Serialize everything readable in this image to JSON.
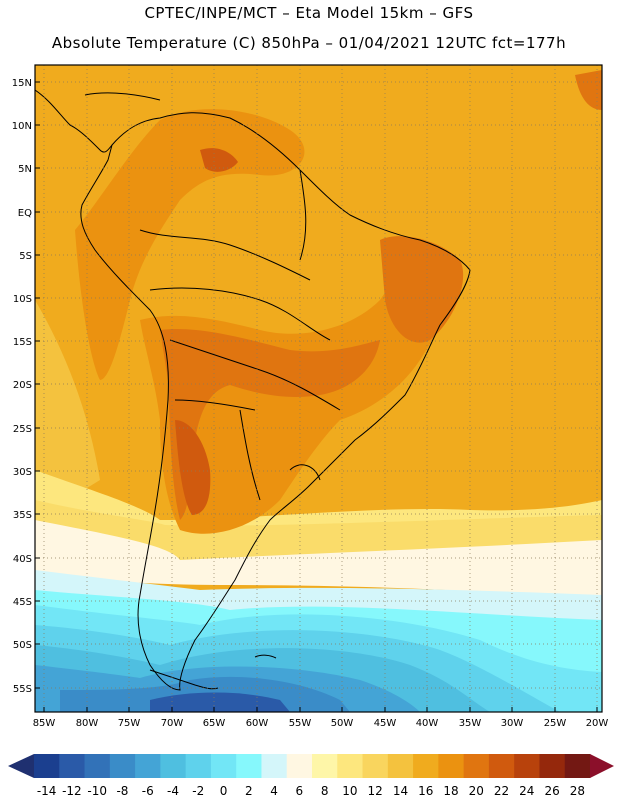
{
  "header": {
    "line1": "CPTEC/INPE/MCT –  Eta Model 15km – GFS",
    "line2": "Absolute Temperature (C) 850hPa – 01/04/2021 12UTC fct=177h"
  },
  "map": {
    "region": "South America",
    "latitude_ticks": [
      "15N",
      "10N",
      "5N",
      "EQ",
      "5S",
      "10S",
      "15S",
      "20S",
      "25S",
      "30S",
      "35S",
      "40S",
      "45S",
      "50S",
      "55S"
    ],
    "longitude_ticks": [
      "85W",
      "80W",
      "75W",
      "70W",
      "65W",
      "60W",
      "55W",
      "50W",
      "45W",
      "40W",
      "35W",
      "30W",
      "25W",
      "20W"
    ]
  },
  "colorbar": {
    "labels": [
      "-14",
      "-12",
      "-10",
      "-8",
      "-6",
      "-4",
      "-2",
      "0",
      "2",
      "4",
      "6",
      "8",
      "10",
      "12",
      "14",
      "16",
      "18",
      "20",
      "22",
      "24",
      "26",
      "28"
    ],
    "colors": [
      "#1b3f8f",
      "#2a5aa8",
      "#3272b8",
      "#3a8cc8",
      "#44a4d6",
      "#4fbfe0",
      "#5fd2ec",
      "#72e6f6",
      "#86f8fc",
      "#d4f6fa",
      "#fff7e2",
      "#fef6a8",
      "#fde77e",
      "#f9d55e",
      "#f4c23e",
      "#f0ab1e",
      "#eb9210",
      "#e07510",
      "#d05a0e",
      "#b8420c",
      "#95280c",
      "#731813"
    ],
    "under_color": "#1f3070",
    "over_color": "#8b0f2a"
  }
}
